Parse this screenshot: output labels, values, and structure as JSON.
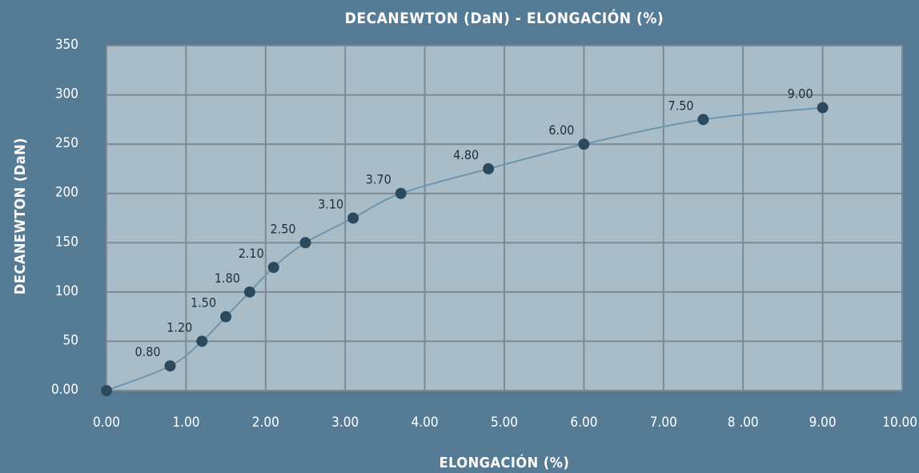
{
  "chart_data": {
    "type": "line",
    "title": "DECANEWTON (DaN) - ELONGACIÓN (%)",
    "xlabel": "ELONGACIÓN (%)",
    "ylabel": "DECANEWTON (DaN)",
    "xlim": [
      0,
      10
    ],
    "ylim": [
      0,
      350
    ],
    "grid": true,
    "legend": "none",
    "x_ticks": [
      "0.00",
      "1.00",
      "2.00",
      "3.00",
      "4.00",
      "5.00",
      "6.00",
      "7.00",
      "8 .00",
      "9.00",
      "10.00"
    ],
    "y_ticks": [
      "0.00",
      "50",
      "100",
      "150",
      "200",
      "250",
      "300",
      "350"
    ],
    "series": [
      {
        "x": [
          0,
          0.8,
          1.2,
          1.5,
          1.8,
          2.1,
          2.5,
          3.1,
          3.7,
          4.8,
          6.0,
          7.5,
          9.0
        ],
        "y": [
          0,
          25,
          50,
          75,
          100,
          125,
          150,
          175,
          200,
          225,
          250,
          275,
          287
        ],
        "labels": [
          "",
          "0.80",
          "1.20",
          "1.50",
          "1.80",
          "2.10",
          "2.50",
          "3.10",
          "3.70",
          "4.80",
          "6.00",
          "7.50",
          "9.00"
        ]
      }
    ],
    "colors": {
      "background": "#567c95",
      "plot_area": "#a9bdc9",
      "grid": "#7d8a94",
      "line": "#6f95ad",
      "marker": "#2c4a5e",
      "label": "#1f2e3a"
    }
  }
}
